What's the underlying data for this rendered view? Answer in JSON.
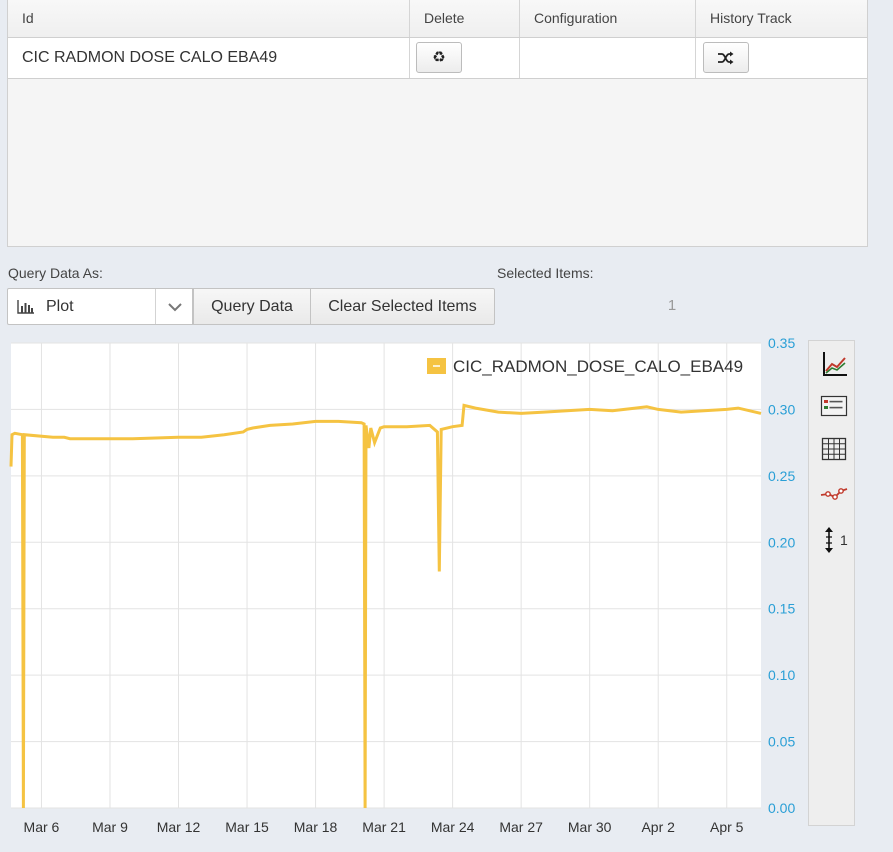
{
  "table": {
    "headers": {
      "id": "Id",
      "delete": "Delete",
      "configuration": "Configuration",
      "history": "History Track"
    },
    "rows": [
      {
        "id": "CIC RADMON DOSE CALO EBA49",
        "delete_icon": "recycle-icon",
        "configuration": "",
        "history_icon": "shuffle-icon"
      }
    ]
  },
  "query": {
    "label": "Query Data As:",
    "selected_option": "Plot",
    "selected_icon": "bar-chart-icon",
    "query_button": "Query Data",
    "clear_button": "Clear Selected Items"
  },
  "selected": {
    "label": "Selected Items:",
    "count": "1"
  },
  "toolbar": {
    "icons": [
      "line-chart-icon",
      "legend-icon",
      "grid-icon",
      "trend-markers-icon",
      "vertical-resize-icon"
    ],
    "scale_value": "1"
  },
  "chart_data": {
    "type": "line",
    "title": "",
    "xlabel": "",
    "ylabel": "",
    "legend": "top-right",
    "grid": true,
    "y_axis_side": "right",
    "ylim": [
      0,
      0.35
    ],
    "yticks": [
      "0.00",
      "0.05",
      "0.10",
      "0.15",
      "0.20",
      "0.25",
      "0.30",
      "0.35"
    ],
    "xlim": [
      "Mar 4 16:00",
      "Apr 6 12:00"
    ],
    "xticks": [
      "Mar 6",
      "Mar 9",
      "Mar 12",
      "Mar 15",
      "Mar 18",
      "Mar 21",
      "Mar 24",
      "Mar 27",
      "Mar 30",
      "Apr 2",
      "Apr 5"
    ],
    "color": "#f5c342",
    "series": [
      {
        "name": "CIC_RADMON_DOSE_CALO_EBA49",
        "x": [
          "Mar 4 16:00",
          "Mar 4 17:00",
          "Mar 4 20:00",
          "Mar 5 04:00",
          "Mar 5 05:00",
          "Mar 5 06:00",
          "Mar 6 12:00",
          "Mar 7 00:00",
          "Mar 7 06:00",
          "Mar 8 00:00",
          "Mar 10 00:00",
          "Mar 12 00:00",
          "Mar 13 00:00",
          "Mar 14 00:00",
          "Mar 14 20:00",
          "Mar 15 00:00",
          "Mar 15 06:00",
          "Mar 16 00:00",
          "Mar 17 00:00",
          "Mar 18 00:00",
          "Mar 19 00:00",
          "Mar 20 00:00",
          "Mar 20 03:00",
          "Mar 20 04:00",
          "Mar 20 05:00",
          "Mar 20 08:00",
          "Mar 20 10:00",
          "Mar 20 14:00",
          "Mar 20 20:00",
          "Mar 21 00:00",
          "Mar 22 00:00",
          "Mar 23 00:00",
          "Mar 23 08:00",
          "Mar 23 10:00",
          "Mar 23 12:00",
          "Mar 24 00:00",
          "Mar 24 10:00",
          "Mar 24 12:00",
          "Mar 25 00:00",
          "Mar 26 00:00",
          "Mar 27 00:00",
          "Mar 28 00:00",
          "Mar 29 00:00",
          "Mar 30 00:00",
          "Mar 31 00:00",
          "Apr 1 00:00",
          "Apr 1 12:00",
          "Apr 2 00:00",
          "Apr 2 12:00",
          "Apr 3 00:00",
          "Apr 4 00:00",
          "Apr 5 00:00",
          "Apr 5 12:00",
          "Apr 6 12:00"
        ],
        "values": [
          0.257,
          0.281,
          0.282,
          0.281,
          0.0,
          0.281,
          0.279,
          0.279,
          0.278,
          0.278,
          0.278,
          0.279,
          0.279,
          0.281,
          0.283,
          0.285,
          0.286,
          0.288,
          0.289,
          0.291,
          0.291,
          0.29,
          0.289,
          0.0,
          0.288,
          0.271,
          0.286,
          0.275,
          0.286,
          0.287,
          0.287,
          0.288,
          0.283,
          0.178,
          0.285,
          0.287,
          0.288,
          0.303,
          0.301,
          0.298,
          0.297,
          0.298,
          0.299,
          0.3,
          0.299,
          0.301,
          0.302,
          0.3,
          0.299,
          0.298,
          0.299,
          0.3,
          0.301,
          0.297
        ]
      }
    ]
  }
}
